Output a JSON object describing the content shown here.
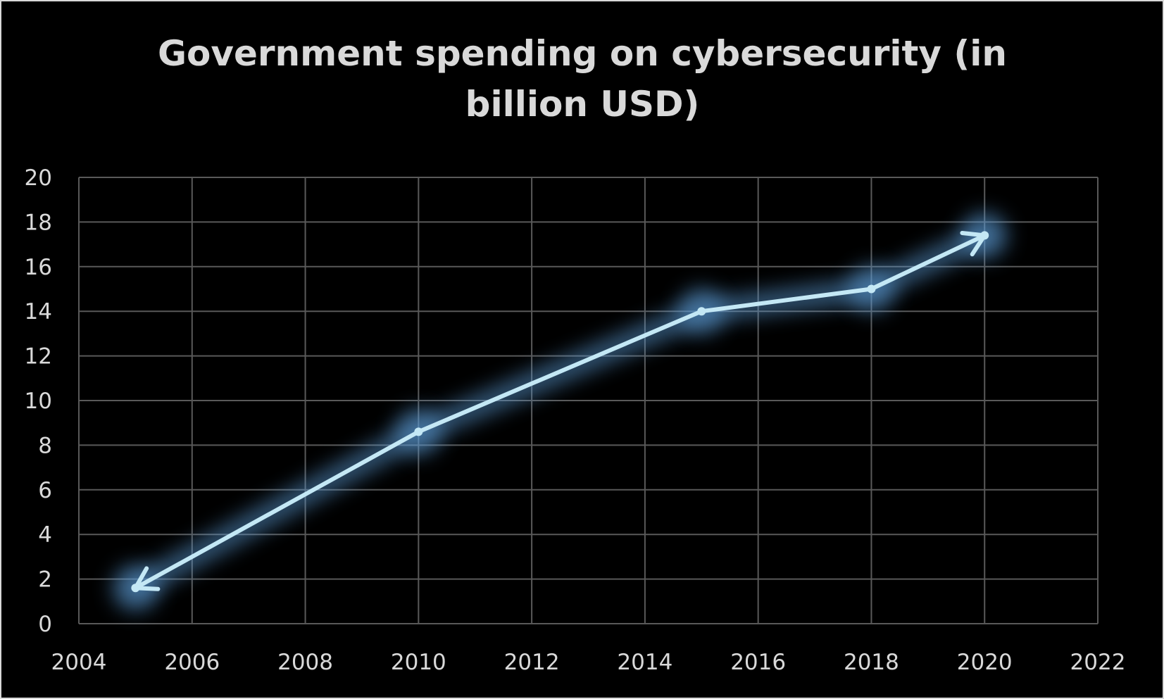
{
  "chart_data": {
    "type": "line",
    "title": "Government spending on cybersecurity (in billion USD)",
    "xlabel": "",
    "ylabel": "",
    "xlim": [
      2004,
      2022
    ],
    "ylim": [
      0,
      20
    ],
    "x_ticks": [
      2004,
      2006,
      2008,
      2010,
      2012,
      2014,
      2016,
      2018,
      2020,
      2022
    ],
    "y_ticks": [
      0,
      2,
      4,
      6,
      8,
      10,
      12,
      14,
      16,
      18,
      20
    ],
    "grid": true,
    "legend": "none",
    "series": [
      {
        "x": [
          2005,
          2010,
          2015,
          2018,
          2020
        ],
        "y": [
          1.6,
          8.6,
          14.0,
          15.0,
          17.4
        ],
        "arrowheads": "both ends"
      }
    ]
  },
  "colors": {
    "background": "#000000",
    "grid": "#595959",
    "text": "#d9d9d9",
    "line": "#c4e8f5",
    "glow": "#5b9bd5"
  }
}
